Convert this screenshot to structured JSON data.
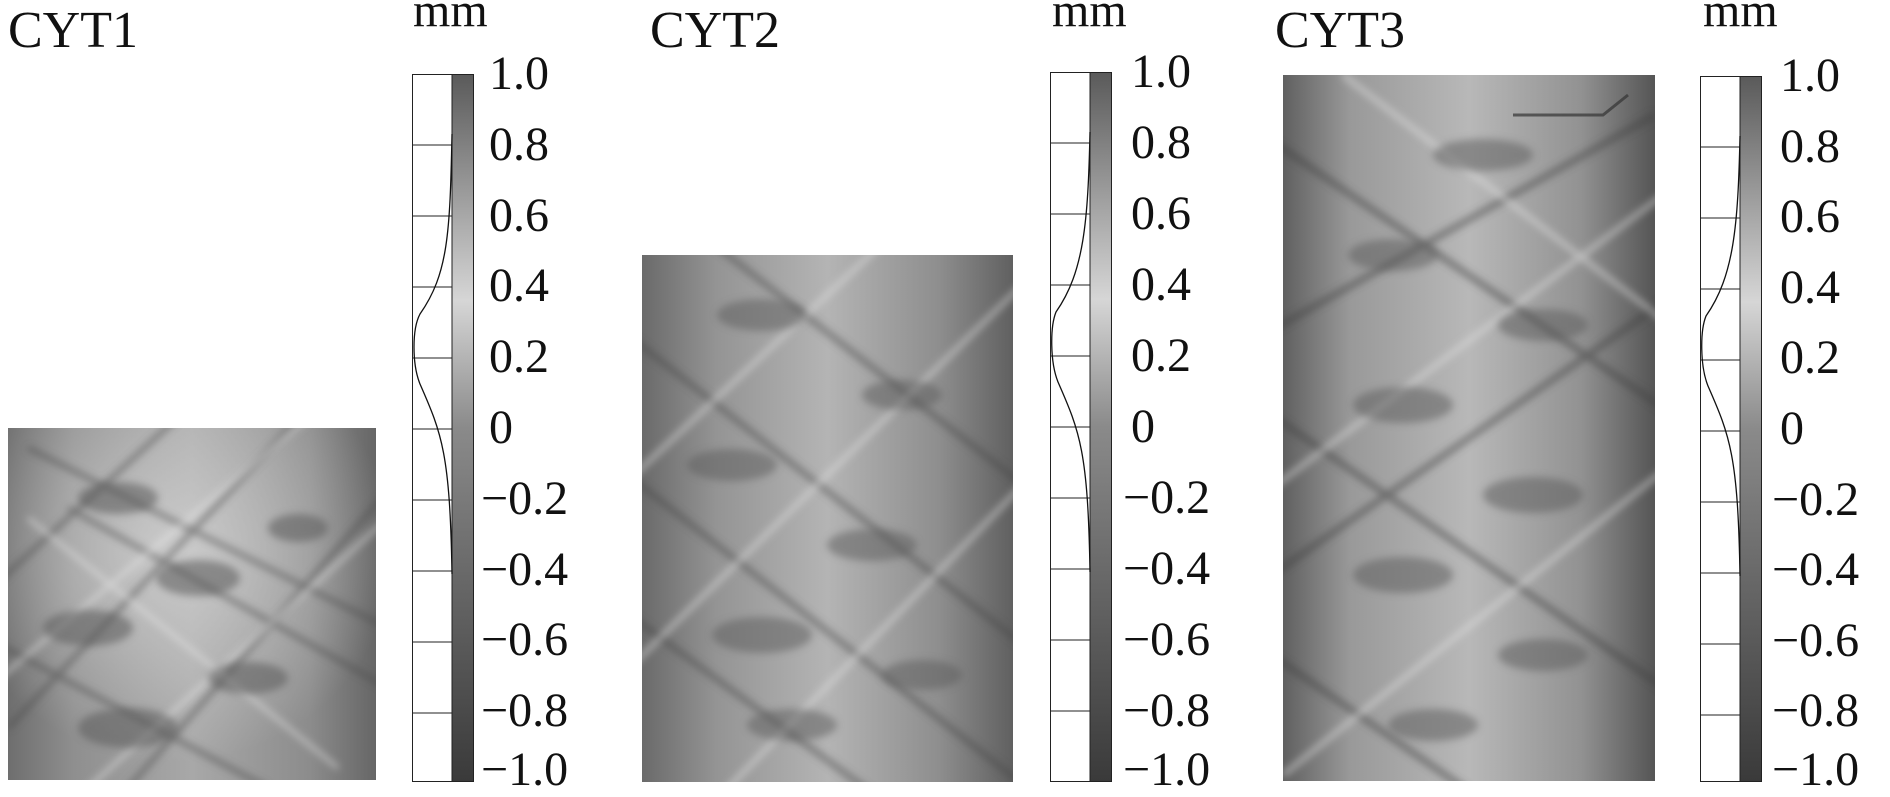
{
  "unit_label": "mm",
  "colorbar": {
    "ticks": [
      "1.0",
      "0.8",
      "0.6",
      "0.4",
      "0.2",
      "0",
      "−0.2",
      "−0.4",
      "−0.6",
      "−0.8",
      "−1.0"
    ],
    "top_color": "#5a5a5a",
    "middle_color": "#d6d6d6",
    "bottom_color": "#3a3a3a"
  },
  "panels": [
    {
      "title": "CYT1"
    },
    {
      "title": "CYT2"
    },
    {
      "title": "CYT3"
    }
  ]
}
